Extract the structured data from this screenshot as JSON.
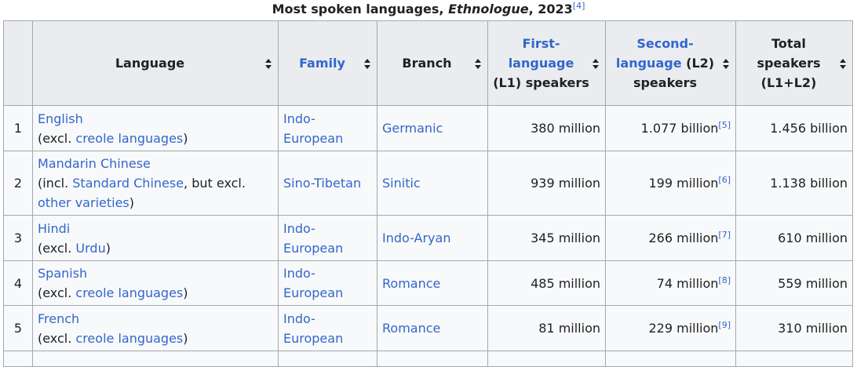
{
  "caption": {
    "prefix": "Most spoken languages, ",
    "italic": "Ethnologue",
    "suffix": ", 2023",
    "ref": "[4]"
  },
  "headers": {
    "language": "Language",
    "family": "Family",
    "branch": "Branch",
    "l1_link": "First-language",
    "l1_rest": "(L1) speakers",
    "l2_link": "Second-language",
    "l2_rest": "(L2) speakers",
    "total": "Total speakers (L1+L2)"
  },
  "rows": [
    {
      "rank": "1",
      "lang_name": "English",
      "lang_note_pre": "(excl. ",
      "lang_note_link": "creole languages",
      "lang_note_mid": ")",
      "family": "Indo-European",
      "branch": "Germanic",
      "l1": "380 million",
      "l2": "1.077 billion",
      "l2_ref": "[5]",
      "total": "1.456 billion"
    },
    {
      "rank": "2",
      "lang_name": "Mandarin Chinese",
      "lang_note_pre": "(incl. ",
      "lang_note_link": "Standard Chinese",
      "lang_note_mid": ", but excl. ",
      "lang_note_link2": "other varieties",
      "lang_note_end": ")",
      "family": "Sino-Tibetan",
      "branch": "Sinitic",
      "l1": "939 million",
      "l2": "199 million",
      "l2_ref": "[6]",
      "total": "1.138 billion"
    },
    {
      "rank": "3",
      "lang_name": "Hindi",
      "lang_note_pre": "(excl. ",
      "lang_note_link": "Urdu",
      "lang_note_mid": ")",
      "family": "Indo-European",
      "branch": "Indo-Aryan",
      "l1": "345 million",
      "l2": "266 million",
      "l2_ref": "[7]",
      "total": "610 million"
    },
    {
      "rank": "4",
      "lang_name": "Spanish",
      "lang_note_pre": "(excl. ",
      "lang_note_link": "creole languages",
      "lang_note_mid": ")",
      "family": "Indo-European",
      "branch": "Romance",
      "l1": "485 million",
      "l2": "74 million",
      "l2_ref": "[8]",
      "total": "559 million"
    },
    {
      "rank": "5",
      "lang_name": "French",
      "lang_note_pre": "(excl. ",
      "lang_note_link": "creole languages",
      "lang_note_mid": ")",
      "family": "Indo-European",
      "branch": "Romance",
      "l1": "81 million",
      "l2": "229 million",
      "l2_ref": "[9]",
      "total": "310 million"
    }
  ]
}
